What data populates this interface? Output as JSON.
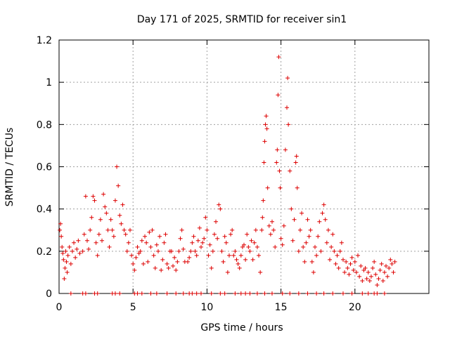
{
  "chart_data": {
    "type": "scatter",
    "title": "Day 171 of 2025, SRMTID for receiver sin1",
    "xlabel": "GPS time / hours",
    "ylabel": "SRMTID / TECUs",
    "xlim": [
      0,
      25
    ],
    "ylim": [
      0,
      1.2
    ],
    "xticks": [
      0,
      5,
      10,
      15,
      20
    ],
    "xtick_labels": [
      "0",
      "5",
      "10",
      "15",
      "20"
    ],
    "yticks": [
      0,
      0.2,
      0.4,
      0.6,
      0.8,
      1.0,
      1.2
    ],
    "ytick_labels": [
      "0",
      "0.2",
      "0.4",
      "0.6",
      "0.8",
      "1",
      "1.2"
    ],
    "grid": true,
    "marker": "+",
    "color": "#dd0000",
    "series": [
      {
        "name": "SRMTID",
        "points": [
          [
            0.05,
            0.3
          ],
          [
            0.1,
            0.33
          ],
          [
            0.15,
            0.27
          ],
          [
            0.2,
            0.22
          ],
          [
            0.25,
            0.19
          ],
          [
            0.3,
            0.16
          ],
          [
            0.35,
            0.07
          ],
          [
            0.4,
            0.12
          ],
          [
            0.45,
            0.2
          ],
          [
            0.5,
            0.15
          ],
          [
            0.55,
            0.1
          ],
          [
            0.6,
            0.18
          ],
          [
            0.7,
            0.22
          ],
          [
            0.8,
            0.14
          ],
          [
            0.9,
            0.2
          ],
          [
            1.0,
            0.24
          ],
          [
            1.1,
            0.17
          ],
          [
            1.2,
            0.21
          ],
          [
            1.3,
            0.25
          ],
          [
            1.4,
            0.19
          ],
          [
            1.6,
            0.2
          ],
          [
            1.7,
            0.28
          ],
          [
            1.8,
            0.46
          ],
          [
            1.9,
            0.25
          ],
          [
            2.0,
            0.21
          ],
          [
            2.1,
            0.3
          ],
          [
            2.2,
            0.36
          ],
          [
            2.3,
            0.46
          ],
          [
            2.4,
            0.44
          ],
          [
            2.5,
            0.24
          ],
          [
            2.6,
            0.18
          ],
          [
            2.7,
            0.28
          ],
          [
            2.8,
            0.35
          ],
          [
            2.9,
            0.25
          ],
          [
            3.0,
            0.47
          ],
          [
            3.1,
            0.41
          ],
          [
            3.2,
            0.38
          ],
          [
            3.3,
            0.3
          ],
          [
            3.4,
            0.22
          ],
          [
            3.5,
            0.35
          ],
          [
            3.6,
            0.3
          ],
          [
            3.7,
            0.27
          ],
          [
            3.8,
            0.44
          ],
          [
            3.9,
            0.6
          ],
          [
            4.0,
            0.51
          ],
          [
            4.1,
            0.37
          ],
          [
            4.2,
            0.33
          ],
          [
            4.3,
            0.42
          ],
          [
            4.4,
            0.3
          ],
          [
            4.5,
            0.28
          ],
          [
            4.6,
            0.2
          ],
          [
            4.7,
            0.24
          ],
          [
            4.8,
            0.3
          ],
          [
            4.9,
            0.18
          ],
          [
            5.0,
            0.14
          ],
          [
            5.1,
            0.11
          ],
          [
            5.2,
            0.17
          ],
          [
            5.3,
            0.22
          ],
          [
            5.4,
            0.19
          ],
          [
            5.5,
            0.2
          ],
          [
            5.6,
            0.25
          ],
          [
            5.7,
            0.14
          ],
          [
            5.8,
            0.27
          ],
          [
            5.9,
            0.24
          ],
          [
            6.0,
            0.15
          ],
          [
            6.1,
            0.29
          ],
          [
            6.2,
            0.22
          ],
          [
            6.3,
            0.3
          ],
          [
            6.4,
            0.18
          ],
          [
            6.5,
            0.12
          ],
          [
            6.6,
            0.23
          ],
          [
            6.7,
            0.2
          ],
          [
            6.8,
            0.27
          ],
          [
            6.9,
            0.11
          ],
          [
            7.0,
            0.16
          ],
          [
            7.1,
            0.24
          ],
          [
            7.2,
            0.28
          ],
          [
            7.3,
            0.14
          ],
          [
            7.4,
            0.12
          ],
          [
            7.5,
            0.2
          ],
          [
            7.6,
            0.2
          ],
          [
            7.7,
            0.13
          ],
          [
            7.8,
            0.17
          ],
          [
            7.9,
            0.11
          ],
          [
            8.0,
            0.15
          ],
          [
            8.1,
            0.2
          ],
          [
            8.2,
            0.26
          ],
          [
            8.3,
            0.3
          ],
          [
            8.4,
            0.21
          ],
          [
            8.5,
            0.15
          ],
          [
            8.7,
            0.15
          ],
          [
            8.8,
            0.17
          ],
          [
            8.9,
            0.2
          ],
          [
            9.0,
            0.24
          ],
          [
            9.1,
            0.27
          ],
          [
            9.2,
            0.2
          ],
          [
            9.3,
            0.18
          ],
          [
            9.4,
            0.25
          ],
          [
            9.5,
            0.31
          ],
          [
            9.6,
            0.22
          ],
          [
            9.7,
            0.24
          ],
          [
            9.8,
            0.26
          ],
          [
            9.9,
            0.36
          ],
          [
            10.0,
            0.3
          ],
          [
            10.1,
            0.18
          ],
          [
            10.2,
            0.23
          ],
          [
            10.3,
            0.12
          ],
          [
            10.4,
            0.2
          ],
          [
            10.5,
            0.28
          ],
          [
            10.6,
            0.34
          ],
          [
            10.7,
            0.26
          ],
          [
            10.8,
            0.42
          ],
          [
            10.9,
            0.4
          ],
          [
            11.0,
            0.2
          ],
          [
            11.1,
            0.15
          ],
          [
            11.2,
            0.27
          ],
          [
            11.3,
            0.24
          ],
          [
            11.4,
            0.1
          ],
          [
            11.5,
            0.18
          ],
          [
            11.6,
            0.28
          ],
          [
            11.7,
            0.3
          ],
          [
            11.8,
            0.18
          ],
          [
            11.9,
            0.2
          ],
          [
            12.0,
            0.16
          ],
          [
            12.1,
            0.14
          ],
          [
            12.2,
            0.12
          ],
          [
            12.3,
            0.18
          ],
          [
            12.4,
            0.22
          ],
          [
            12.5,
            0.23
          ],
          [
            12.6,
            0.16
          ],
          [
            12.7,
            0.28
          ],
          [
            12.8,
            0.22
          ],
          [
            12.9,
            0.2
          ],
          [
            13.0,
            0.25
          ],
          [
            13.1,
            0.16
          ],
          [
            13.2,
            0.24
          ],
          [
            13.3,
            0.3
          ],
          [
            13.4,
            0.22
          ],
          [
            13.5,
            0.18
          ],
          [
            13.6,
            0.1
          ],
          [
            13.7,
            0.3
          ],
          [
            13.75,
            0.36
          ],
          [
            13.8,
            0.44
          ],
          [
            13.85,
            0.62
          ],
          [
            13.9,
            0.72
          ],
          [
            13.95,
            0.8
          ],
          [
            14.0,
            0.84
          ],
          [
            14.05,
            0.78
          ],
          [
            14.1,
            0.5
          ],
          [
            14.2,
            0.32
          ],
          [
            14.3,
            0.28
          ],
          [
            14.4,
            0.34
          ],
          [
            14.5,
            0.3
          ],
          [
            14.6,
            0.22
          ],
          [
            14.7,
            0.62
          ],
          [
            14.75,
            0.68
          ],
          [
            14.8,
            0.94
          ],
          [
            14.85,
            1.12
          ],
          [
            14.9,
            0.58
          ],
          [
            14.95,
            0.5
          ],
          [
            15.0,
            0.26
          ],
          [
            15.1,
            0.23
          ],
          [
            15.2,
            0.32
          ],
          [
            15.3,
            0.68
          ],
          [
            15.4,
            0.88
          ],
          [
            15.45,
            1.02
          ],
          [
            15.5,
            0.8
          ],
          [
            15.6,
            0.58
          ],
          [
            15.7,
            0.4
          ],
          [
            15.8,
            0.25
          ],
          [
            15.9,
            0.35
          ],
          [
            16.0,
            0.62
          ],
          [
            16.05,
            0.65
          ],
          [
            16.1,
            0.5
          ],
          [
            16.2,
            0.2
          ],
          [
            16.3,
            0.3
          ],
          [
            16.4,
            0.38
          ],
          [
            16.5,
            0.22
          ],
          [
            16.6,
            0.15
          ],
          [
            16.7,
            0.24
          ],
          [
            16.8,
            0.35
          ],
          [
            16.9,
            0.27
          ],
          [
            17.0,
            0.3
          ],
          [
            17.1,
            0.15
          ],
          [
            17.2,
            0.1
          ],
          [
            17.3,
            0.22
          ],
          [
            17.4,
            0.18
          ],
          [
            17.5,
            0.27
          ],
          [
            17.6,
            0.34
          ],
          [
            17.7,
            0.2
          ],
          [
            17.8,
            0.38
          ],
          [
            17.9,
            0.42
          ],
          [
            18.0,
            0.35
          ],
          [
            18.1,
            0.24
          ],
          [
            18.2,
            0.3
          ],
          [
            18.3,
            0.16
          ],
          [
            18.4,
            0.22
          ],
          [
            18.5,
            0.28
          ],
          [
            18.6,
            0.2
          ],
          [
            18.7,
            0.14
          ],
          [
            18.8,
            0.18
          ],
          [
            18.9,
            0.12
          ],
          [
            19.0,
            0.2
          ],
          [
            19.1,
            0.24
          ],
          [
            19.2,
            0.16
          ],
          [
            19.3,
            0.1
          ],
          [
            19.4,
            0.15
          ],
          [
            19.5,
            0.12
          ],
          [
            19.6,
            0.09
          ],
          [
            19.7,
            0.14
          ],
          [
            19.8,
            0.17
          ],
          [
            19.9,
            0.11
          ],
          [
            20.0,
            0.15
          ],
          [
            20.1,
            0.1
          ],
          [
            20.2,
            0.18
          ],
          [
            20.3,
            0.08
          ],
          [
            20.4,
            0.13
          ],
          [
            20.5,
            0.06
          ],
          [
            20.6,
            0.11
          ],
          [
            20.7,
            0.12
          ],
          [
            20.8,
            0.07
          ],
          [
            20.9,
            0.1
          ],
          [
            21.0,
            0.06
          ],
          [
            21.1,
            0.08
          ],
          [
            21.2,
            0.12
          ],
          [
            21.3,
            0.15
          ],
          [
            21.4,
            0.09
          ],
          [
            21.5,
            0.04
          ],
          [
            21.6,
            0.07
          ],
          [
            21.7,
            0.11
          ],
          [
            21.8,
            0.14
          ],
          [
            21.9,
            0.06
          ],
          [
            22.0,
            0.1
          ],
          [
            22.1,
            0.13
          ],
          [
            22.2,
            0.08
          ],
          [
            22.3,
            0.12
          ],
          [
            22.4,
            0.16
          ],
          [
            22.5,
            0.14
          ],
          [
            22.6,
            0.1
          ],
          [
            22.7,
            0.15
          ],
          [
            0.8,
            0
          ],
          [
            1.6,
            0
          ],
          [
            1.8,
            0
          ],
          [
            2.4,
            0
          ],
          [
            2.6,
            0
          ],
          [
            3.6,
            0
          ],
          [
            3.8,
            0
          ],
          [
            4.1,
            0
          ],
          [
            5.1,
            0
          ],
          [
            5.3,
            0
          ],
          [
            5.6,
            0
          ],
          [
            6.2,
            0
          ],
          [
            6.6,
            0
          ],
          [
            7.3,
            0
          ],
          [
            7.9,
            0
          ],
          [
            8.4,
            0
          ],
          [
            8.8,
            0
          ],
          [
            9.0,
            0
          ],
          [
            9.3,
            0
          ],
          [
            9.6,
            0
          ],
          [
            10.3,
            0
          ],
          [
            10.9,
            0
          ],
          [
            11.2,
            0
          ],
          [
            11.9,
            0
          ],
          [
            12.3,
            0
          ],
          [
            12.6,
            0
          ],
          [
            12.9,
            0
          ],
          [
            13.4,
            0
          ],
          [
            13.9,
            0
          ],
          [
            14.4,
            0
          ],
          [
            15.1,
            0
          ],
          [
            15.6,
            0
          ],
          [
            16.2,
            0
          ],
          [
            16.8,
            0
          ],
          [
            17.4,
            0
          ],
          [
            17.9,
            0
          ],
          [
            18.5,
            0
          ],
          [
            19.2,
            0
          ],
          [
            19.8,
            0
          ],
          [
            20.5,
            0
          ],
          [
            20.9,
            0
          ],
          [
            21.3,
            0
          ],
          [
            21.5,
            0
          ],
          [
            22.0,
            0
          ]
        ]
      }
    ]
  }
}
